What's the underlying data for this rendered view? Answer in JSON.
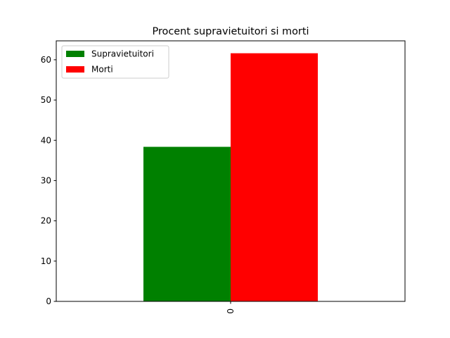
{
  "chart_data": {
    "type": "bar",
    "title": "Procent supravietuitori si morti",
    "categories": [
      "0"
    ],
    "series": [
      {
        "name": "Supravietuitori",
        "values": [
          38.38
        ],
        "color": "#008000"
      },
      {
        "name": "Morti",
        "values": [
          61.62
        ],
        "color": "#ff0000"
      }
    ],
    "yticks": [
      0,
      10,
      20,
      30,
      40,
      50,
      60
    ],
    "ylim": [
      0,
      64.7
    ],
    "legend": "top-left",
    "grid": false
  }
}
